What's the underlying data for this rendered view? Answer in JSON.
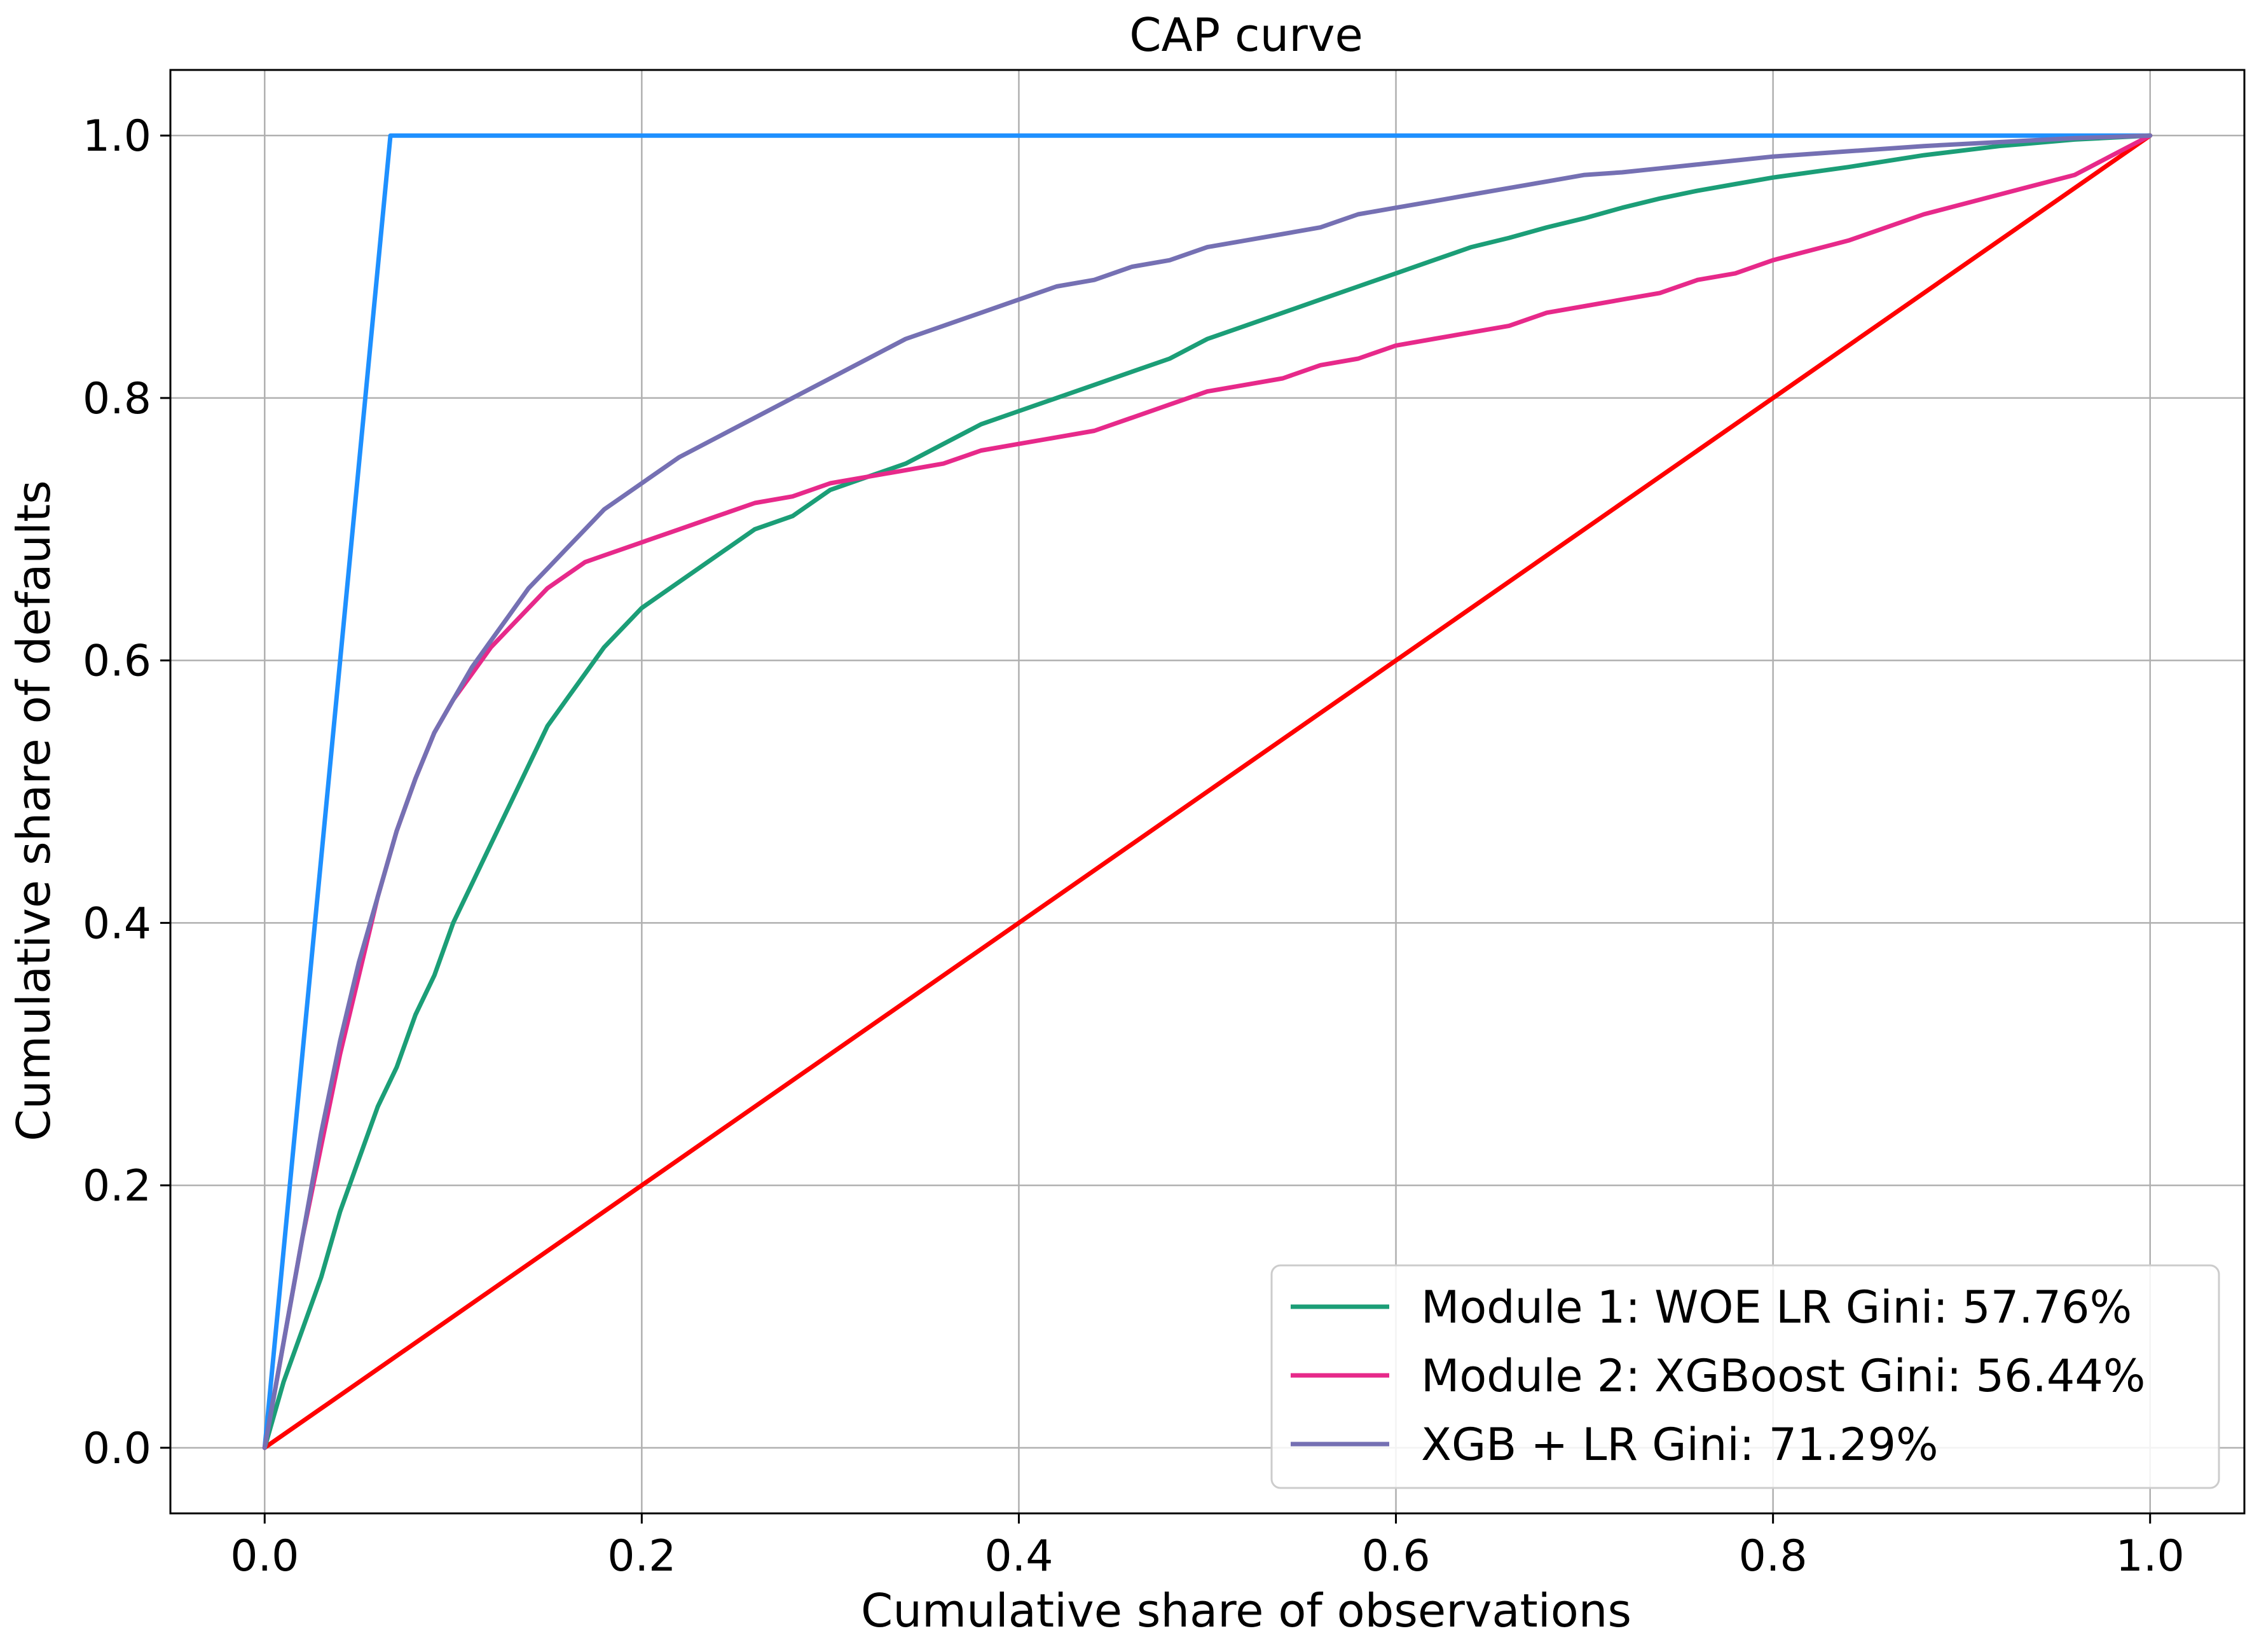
{
  "chart_data": {
    "type": "line",
    "title": "CAP curve",
    "xlabel": "Cumulative share of observations",
    "ylabel": "Cumulative share of defaults",
    "xlim": [
      -0.05,
      1.05
    ],
    "ylim": [
      -0.05,
      1.05
    ],
    "xticks": [
      "0.0",
      "0.2",
      "0.4",
      "0.6",
      "0.8",
      "1.0"
    ],
    "yticks": [
      "0.0",
      "0.2",
      "0.4",
      "0.6",
      "0.8",
      "1.0"
    ],
    "grid": true,
    "legend_position": "lower-right",
    "series": [
      {
        "name": "Module 1: WOE LR Gini: 57.76%",
        "color": "#1b9e77",
        "points": [
          [
            0,
            0
          ],
          [
            0.01,
            0.05
          ],
          [
            0.02,
            0.09
          ],
          [
            0.03,
            0.13
          ],
          [
            0.04,
            0.18
          ],
          [
            0.05,
            0.22
          ],
          [
            0.06,
            0.26
          ],
          [
            0.07,
            0.29
          ],
          [
            0.08,
            0.33
          ],
          [
            0.09,
            0.36
          ],
          [
            0.1,
            0.4
          ],
          [
            0.11,
            0.43
          ],
          [
            0.12,
            0.46
          ],
          [
            0.13,
            0.49
          ],
          [
            0.14,
            0.52
          ],
          [
            0.15,
            0.55
          ],
          [
            0.16,
            0.57
          ],
          [
            0.17,
            0.59
          ],
          [
            0.18,
            0.61
          ],
          [
            0.2,
            0.64
          ],
          [
            0.22,
            0.66
          ],
          [
            0.24,
            0.68
          ],
          [
            0.26,
            0.7
          ],
          [
            0.28,
            0.71
          ],
          [
            0.3,
            0.73
          ],
          [
            0.32,
            0.74
          ],
          [
            0.34,
            0.75
          ],
          [
            0.36,
            0.765
          ],
          [
            0.38,
            0.78
          ],
          [
            0.4,
            0.79
          ],
          [
            0.42,
            0.8
          ],
          [
            0.44,
            0.81
          ],
          [
            0.46,
            0.82
          ],
          [
            0.48,
            0.83
          ],
          [
            0.5,
            0.845
          ],
          [
            0.52,
            0.855
          ],
          [
            0.54,
            0.865
          ],
          [
            0.56,
            0.875
          ],
          [
            0.58,
            0.885
          ],
          [
            0.6,
            0.895
          ],
          [
            0.62,
            0.905
          ],
          [
            0.64,
            0.915
          ],
          [
            0.66,
            0.922
          ],
          [
            0.68,
            0.93
          ],
          [
            0.7,
            0.937
          ],
          [
            0.72,
            0.945
          ],
          [
            0.74,
            0.952
          ],
          [
            0.76,
            0.958
          ],
          [
            0.78,
            0.963
          ],
          [
            0.8,
            0.968
          ],
          [
            0.84,
            0.976
          ],
          [
            0.88,
            0.985
          ],
          [
            0.92,
            0.992
          ],
          [
            0.96,
            0.997
          ],
          [
            1.0,
            1.0
          ]
        ]
      },
      {
        "name": "Module 2: XGBoost Gini: 56.44%",
        "color": "#e7298a",
        "points": [
          [
            0,
            0
          ],
          [
            0.01,
            0.08
          ],
          [
            0.02,
            0.16
          ],
          [
            0.03,
            0.23
          ],
          [
            0.04,
            0.3
          ],
          [
            0.05,
            0.36
          ],
          [
            0.06,
            0.42
          ],
          [
            0.07,
            0.47
          ],
          [
            0.08,
            0.51
          ],
          [
            0.09,
            0.545
          ],
          [
            0.1,
            0.57
          ],
          [
            0.11,
            0.59
          ],
          [
            0.12,
            0.61
          ],
          [
            0.13,
            0.625
          ],
          [
            0.14,
            0.64
          ],
          [
            0.15,
            0.655
          ],
          [
            0.16,
            0.665
          ],
          [
            0.17,
            0.675
          ],
          [
            0.18,
            0.68
          ],
          [
            0.2,
            0.69
          ],
          [
            0.22,
            0.7
          ],
          [
            0.24,
            0.71
          ],
          [
            0.26,
            0.72
          ],
          [
            0.28,
            0.725
          ],
          [
            0.3,
            0.735
          ],
          [
            0.32,
            0.74
          ],
          [
            0.34,
            0.745
          ],
          [
            0.36,
            0.75
          ],
          [
            0.38,
            0.76
          ],
          [
            0.4,
            0.765
          ],
          [
            0.42,
            0.77
          ],
          [
            0.44,
            0.775
          ],
          [
            0.46,
            0.785
          ],
          [
            0.48,
            0.795
          ],
          [
            0.5,
            0.805
          ],
          [
            0.52,
            0.81
          ],
          [
            0.54,
            0.815
          ],
          [
            0.56,
            0.825
          ],
          [
            0.58,
            0.83
          ],
          [
            0.6,
            0.84
          ],
          [
            0.62,
            0.845
          ],
          [
            0.64,
            0.85
          ],
          [
            0.66,
            0.855
          ],
          [
            0.68,
            0.865
          ],
          [
            0.7,
            0.87
          ],
          [
            0.72,
            0.875
          ],
          [
            0.74,
            0.88
          ],
          [
            0.76,
            0.89
          ],
          [
            0.78,
            0.895
          ],
          [
            0.8,
            0.905
          ],
          [
            0.84,
            0.92
          ],
          [
            0.88,
            0.94
          ],
          [
            0.92,
            0.955
          ],
          [
            0.96,
            0.97
          ],
          [
            0.98,
            0.985
          ],
          [
            1.0,
            1.0
          ]
        ]
      },
      {
        "name": "XGB + LR Gini: 71.29%",
        "color": "#7570b3",
        "points": [
          [
            0,
            0
          ],
          [
            0.01,
            0.08
          ],
          [
            0.02,
            0.16
          ],
          [
            0.03,
            0.24
          ],
          [
            0.04,
            0.31
          ],
          [
            0.05,
            0.37
          ],
          [
            0.06,
            0.42
          ],
          [
            0.07,
            0.47
          ],
          [
            0.08,
            0.51
          ],
          [
            0.09,
            0.545
          ],
          [
            0.1,
            0.57
          ],
          [
            0.11,
            0.595
          ],
          [
            0.12,
            0.615
          ],
          [
            0.13,
            0.635
          ],
          [
            0.14,
            0.655
          ],
          [
            0.15,
            0.67
          ],
          [
            0.16,
            0.685
          ],
          [
            0.17,
            0.7
          ],
          [
            0.18,
            0.715
          ],
          [
            0.2,
            0.735
          ],
          [
            0.22,
            0.755
          ],
          [
            0.24,
            0.77
          ],
          [
            0.26,
            0.785
          ],
          [
            0.28,
            0.8
          ],
          [
            0.3,
            0.815
          ],
          [
            0.32,
            0.83
          ],
          [
            0.34,
            0.845
          ],
          [
            0.36,
            0.855
          ],
          [
            0.38,
            0.865
          ],
          [
            0.4,
            0.875
          ],
          [
            0.42,
            0.885
          ],
          [
            0.44,
            0.89
          ],
          [
            0.46,
            0.9
          ],
          [
            0.48,
            0.905
          ],
          [
            0.5,
            0.915
          ],
          [
            0.52,
            0.92
          ],
          [
            0.54,
            0.925
          ],
          [
            0.56,
            0.93
          ],
          [
            0.58,
            0.94
          ],
          [
            0.6,
            0.945
          ],
          [
            0.62,
            0.95
          ],
          [
            0.64,
            0.955
          ],
          [
            0.66,
            0.96
          ],
          [
            0.68,
            0.965
          ],
          [
            0.7,
            0.97
          ],
          [
            0.72,
            0.972
          ],
          [
            0.74,
            0.975
          ],
          [
            0.76,
            0.978
          ],
          [
            0.78,
            0.981
          ],
          [
            0.8,
            0.984
          ],
          [
            0.84,
            0.988
          ],
          [
            0.88,
            0.992
          ],
          [
            0.92,
            0.995
          ],
          [
            0.96,
            0.998
          ],
          [
            1.0,
            1.0
          ]
        ]
      },
      {
        "color": "#1e90ff",
        "points": [
          [
            0,
            0
          ],
          [
            0.0667,
            1.0
          ],
          [
            1.0,
            1.0
          ]
        ]
      },
      {
        "color": "#ff0000",
        "points": [
          [
            0,
            0
          ],
          [
            1.0,
            1.0
          ]
        ]
      }
    ]
  }
}
